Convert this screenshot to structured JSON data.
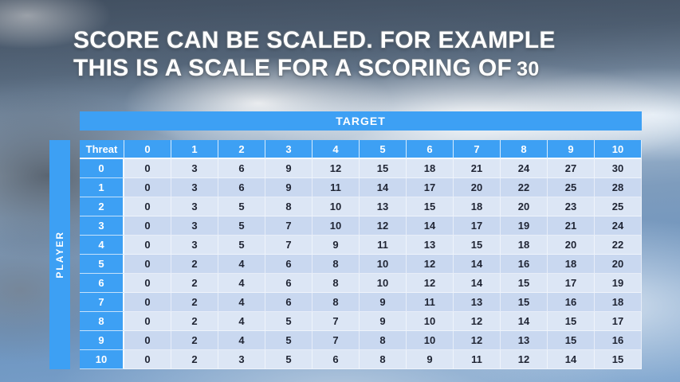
{
  "slide": {
    "title_line1": "SCORE CAN BE SCALED. FOR EXAMPLE",
    "title_line2_prefix": "THIS IS A SCALE FOR A SCORING OF",
    "title_line2_number": "30"
  },
  "table": {
    "target_label": "TARGET",
    "player_label": "PLAYER",
    "threat_label": "Threat",
    "col_headers": [
      "0",
      "1",
      "2",
      "3",
      "4",
      "5",
      "6",
      "7",
      "8",
      "9",
      "10"
    ],
    "rows": [
      {
        "threat": "0",
        "values": [
          0,
          3,
          6,
          9,
          12,
          15,
          18,
          21,
          24,
          27,
          30
        ]
      },
      {
        "threat": "1",
        "values": [
          0,
          3,
          6,
          9,
          11,
          14,
          17,
          20,
          22,
          25,
          28
        ]
      },
      {
        "threat": "2",
        "values": [
          0,
          3,
          5,
          8,
          10,
          13,
          15,
          18,
          20,
          23,
          25
        ]
      },
      {
        "threat": "3",
        "values": [
          0,
          3,
          5,
          7,
          10,
          12,
          14,
          17,
          19,
          21,
          24
        ]
      },
      {
        "threat": "4",
        "values": [
          0,
          3,
          5,
          7,
          9,
          11,
          13,
          15,
          18,
          20,
          22
        ]
      },
      {
        "threat": "5",
        "values": [
          0,
          2,
          4,
          6,
          8,
          10,
          12,
          14,
          16,
          18,
          20
        ]
      },
      {
        "threat": "6",
        "values": [
          0,
          2,
          4,
          6,
          8,
          10,
          12,
          14,
          15,
          17,
          19
        ]
      },
      {
        "threat": "7",
        "values": [
          0,
          2,
          4,
          6,
          8,
          9,
          11,
          13,
          15,
          16,
          18
        ]
      },
      {
        "threat": "8",
        "values": [
          0,
          2,
          4,
          5,
          7,
          9,
          10,
          12,
          14,
          15,
          17
        ]
      },
      {
        "threat": "9",
        "values": [
          0,
          2,
          4,
          5,
          7,
          8,
          10,
          12,
          13,
          15,
          16
        ]
      },
      {
        "threat": "10",
        "values": [
          0,
          2,
          3,
          5,
          6,
          8,
          9,
          11,
          12,
          14,
          15
        ]
      }
    ]
  },
  "colors": {
    "accent_blue": "#3da0f4",
    "row_light": "#dce6f5",
    "row_dark": "#c9d8f0",
    "cell_text": "#1f2433"
  }
}
